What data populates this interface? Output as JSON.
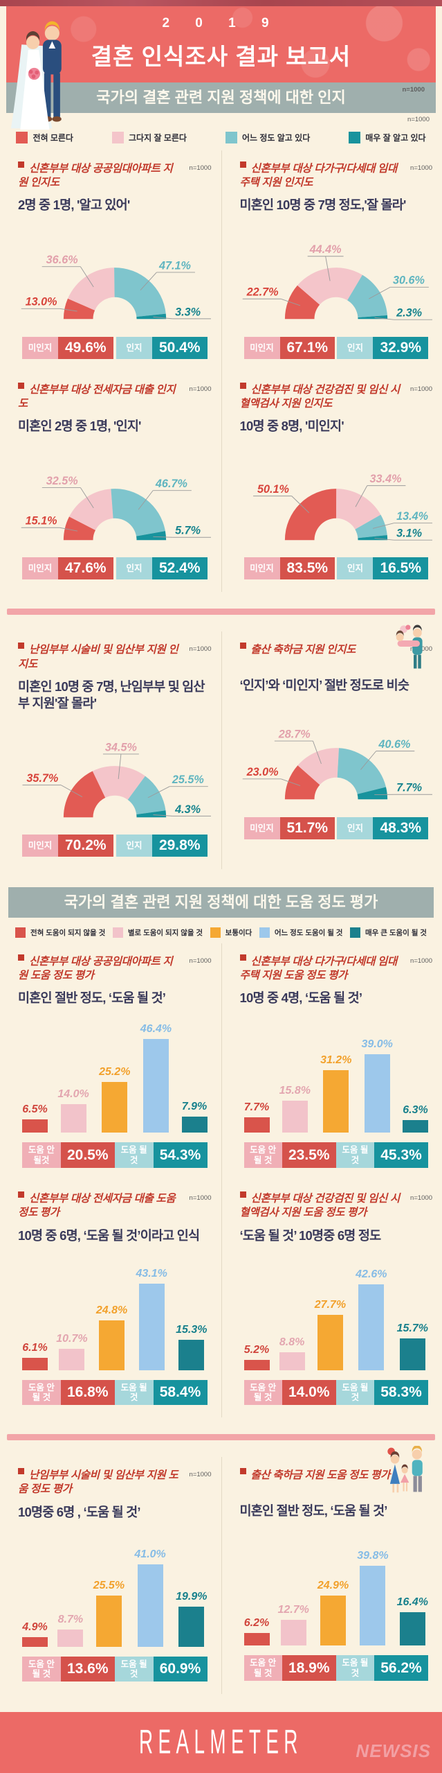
{
  "header": {
    "year": "2 0 1 9",
    "title": "결혼 인식조사 결과 보고서"
  },
  "sections": [
    {
      "banner": "국가의 결혼 관련 지원 정책에 대한 인지",
      "sample": "n=1000",
      "legend": [
        "전혀 모른다",
        "그다지 잘 모른다",
        "어느 정도 알고 있다",
        "매우 잘 알고 있다"
      ]
    },
    {
      "banner": "국가의 결혼 관련 지원 정책에 대한 도움 정도 평가",
      "legend": [
        "전혀 도움이 되지 않을 것",
        "별로 도움이 되지 않을 것",
        "보통이다",
        "어느 정도 도움이 될 것",
        "매우 큰 도움이 될 것"
      ]
    }
  ],
  "palettes": {
    "awareness_colors": [
      "#E25B54",
      "#F4C5CA",
      "#7FC5CD",
      "#18939D"
    ],
    "awareness_label_colors": [
      "#D8443B",
      "#E2A0AB",
      "#5FB5C0",
      "#17848E"
    ],
    "help_colors": [
      "#D9544B",
      "#F2C3CA",
      "#F5A833",
      "#9DC8EB",
      "#1B808D"
    ],
    "help_label_colors": [
      "#D0453C",
      "#E3A6B0",
      "#F2A12C",
      "#86BCE6",
      "#17808C"
    ]
  },
  "chart_data": [
    {
      "type": "donut",
      "title": "신혼부부 대상 공공임대아파트 지원 인지도",
      "sample": "n=1000",
      "subtitle": "2명 중 1명, '알고 있어'",
      "categories": [
        "전혀 모른다",
        "그다지 잘 모른다",
        "어느 정도 알고 있다",
        "매우 잘 알고 있다"
      ],
      "values": [
        13.0,
        36.6,
        47.1,
        3.3
      ],
      "summary": [
        {
          "label": "미인지",
          "value": "49.6%",
          "tone": "negative"
        },
        {
          "label": "인지",
          "value": "50.4%",
          "tone": "positive"
        }
      ]
    },
    {
      "type": "donut",
      "title": "신혼부부 대상 다가구/다세대 임대주택 지원 인지도",
      "sample": "n=1000",
      "subtitle": "미혼인 10명 중 7명 정도,'잘 몰라'",
      "categories": [
        "전혀 모른다",
        "그다지 잘 모른다",
        "어느 정도 알고 있다",
        "매우 잘 알고 있다"
      ],
      "values": [
        22.7,
        44.4,
        30.6,
        2.3
      ],
      "summary": [
        {
          "label": "미인지",
          "value": "67.1%",
          "tone": "negative"
        },
        {
          "label": "인지",
          "value": "32.9%",
          "tone": "positive"
        }
      ]
    },
    {
      "type": "donut",
      "title": "신혼부부 대상 전세자금 대출 인지도",
      "sample": "n=1000",
      "subtitle": "미혼인 2명 중 1명, '인지'",
      "categories": [
        "전혀 모른다",
        "그다지 잘 모른다",
        "어느 정도 알고 있다",
        "매우 잘 알고 있다"
      ],
      "values": [
        15.1,
        32.5,
        46.7,
        5.7
      ],
      "summary": [
        {
          "label": "미인지",
          "value": "47.6%",
          "tone": "negative"
        },
        {
          "label": "인지",
          "value": "52.4%",
          "tone": "positive"
        }
      ]
    },
    {
      "type": "donut",
      "title": "신혼부부 대상 건강검진 및 임신 시 혈액검사 지원 인지도",
      "sample": "n=1000",
      "subtitle": "10명 중 8명, '미인지'",
      "categories": [
        "전혀 모른다",
        "그다지 잘 모른다",
        "어느 정도 알고 있다",
        "매우 잘 알고 있다"
      ],
      "values": [
        50.1,
        33.4,
        13.4,
        3.1
      ],
      "summary": [
        {
          "label": "미인지",
          "value": "83.5%",
          "tone": "negative"
        },
        {
          "label": "인지",
          "value": "16.5%",
          "tone": "positive"
        }
      ]
    },
    {
      "type": "donut",
      "title": "난임부부 시술비 및 임산부 지원 인지도",
      "sample": "n=1000",
      "subtitle": "미혼인 10명 중 7명, 난임부부 및 임산부 지원'잘 몰라'",
      "categories": [
        "전혀 모른다",
        "그다지 잘 모른다",
        "어느 정도 알고 있다",
        "매우 잘 알고 있다"
      ],
      "values": [
        35.7,
        34.5,
        25.5,
        4.3
      ],
      "summary": [
        {
          "label": "미인지",
          "value": "70.2%",
          "tone": "negative"
        },
        {
          "label": "인지",
          "value": "29.8%",
          "tone": "positive"
        }
      ]
    },
    {
      "type": "donut",
      "title": "출산 축하금 지원 인지도",
      "sample": "n=1000",
      "subtitle": "‘인지’와 ‘미인지’ 절반 정도로 비슷",
      "categories": [
        "전혀 모른다",
        "그다지 잘 모른다",
        "어느 정도 알고 있다",
        "매우 잘 알고 있다"
      ],
      "values": [
        23.0,
        28.7,
        40.6,
        7.7
      ],
      "summary": [
        {
          "label": "미인지",
          "value": "51.7%",
          "tone": "negative"
        },
        {
          "label": "인지",
          "value": "48.3%",
          "tone": "positive"
        }
      ]
    },
    {
      "type": "bar",
      "title": "신혼부부 대상 공공임대아파트 지원 도움 정도 평가",
      "sample": "n=1000",
      "subtitle": "미혼인 절반 정도, ‘도움 될 것’",
      "categories": [
        "전혀 도움이 되지 않을 것",
        "별로 도움이 되지 않을 것",
        "보통이다",
        "어느 정도 도움이 될 것",
        "매우 큰 도움이 될 것"
      ],
      "values": [
        6.5,
        14.0,
        25.2,
        46.4,
        7.9
      ],
      "summary": [
        {
          "label": "도움 안될것",
          "value": "20.5%",
          "tone": "negative"
        },
        {
          "label": "도움 될 것",
          "value": "54.3%",
          "tone": "positive"
        }
      ]
    },
    {
      "type": "bar",
      "title": "신혼부부 대상 다가구/다세대 임대주택 지원 도움 정도 평가",
      "sample": "n=1000",
      "subtitle": "10명 중 4명, ‘도움 될 것’",
      "categories": [
        "전혀 도움이 되지 않을 것",
        "별로 도움이 되지 않을 것",
        "보통이다",
        "어느 정도 도움이 될 것",
        "매우 큰 도움이 될 것"
      ],
      "values": [
        7.7,
        15.8,
        31.2,
        39.0,
        6.3
      ],
      "summary": [
        {
          "label": "도움 안될 것",
          "value": "23.5%",
          "tone": "negative"
        },
        {
          "label": "도움 될것",
          "value": "45.3%",
          "tone": "positive"
        }
      ]
    },
    {
      "type": "bar",
      "title": "신혼부부 대상 전세자금 대출 도움 정도 평가",
      "sample": "n=1000",
      "subtitle": "10명 중 6명, ‘도움 될 것’이라고 인식",
      "categories": [
        "전혀 도움이 되지 않을 것",
        "별로 도움이 되지 않을 것",
        "보통이다",
        "어느 정도 도움이 될 것",
        "매우 큰 도움이 될 것"
      ],
      "values": [
        6.1,
        10.7,
        24.8,
        43.1,
        15.3
      ],
      "summary": [
        {
          "label": "도움 안될 것",
          "value": "16.8%",
          "tone": "negative"
        },
        {
          "label": "도움 될 것",
          "value": "58.4%",
          "tone": "positive"
        }
      ]
    },
    {
      "type": "bar",
      "title": "신혼부부 대상 건강검진 및 임신 시 혈액검사 지원 도움 정도 평가",
      "sample": "n=1000",
      "subtitle": "‘도움 될 것’ 10명중 6명 정도",
      "categories": [
        "전혀 도움이 되지 않을 것",
        "별로 도움이 되지 않을 것",
        "보통이다",
        "어느 정도 도움이 될 것",
        "매우 큰 도움이 될 것"
      ],
      "values": [
        5.2,
        8.8,
        27.7,
        42.6,
        15.7
      ],
      "summary": [
        {
          "label": "도움 안될 것",
          "value": "14.0%",
          "tone": "negative"
        },
        {
          "label": "도움 될 것",
          "value": "58.3%",
          "tone": "positive"
        }
      ]
    },
    {
      "type": "bar",
      "title": "난임부부 시술비 및 임산부 지원 도움 정도 평가",
      "sample": "n=1000",
      "subtitle": "10명중 6명 , ‘도움 될 것’",
      "categories": [
        "전혀 도움이 되지 않을 것",
        "별로 도움이 되지 않을 것",
        "보통이다",
        "어느 정도 도움이 될 것",
        "매우 큰 도움이 될 것"
      ],
      "values": [
        4.9,
        8.7,
        25.5,
        41.0,
        19.9
      ],
      "summary": [
        {
          "label": "도움 안될 것",
          "value": "13.6%",
          "tone": "negative"
        },
        {
          "label": "도움 될것",
          "value": "60.9%",
          "tone": "positive"
        }
      ]
    },
    {
      "type": "bar",
      "title": "출산 축하금 지원 도움 정도 평가",
      "sample": "",
      "subtitle": "미혼인 절반 정도, ‘도움 될 것’",
      "categories": [
        "전혀 도움이 되지 않을 것",
        "별로 도움이 되지 않을 것",
        "보통이다",
        "어느 정도 도움이 될 것",
        "매우 큰 도움이 될 것"
      ],
      "values": [
        6.2,
        12.7,
        24.9,
        39.8,
        16.4
      ],
      "summary": [
        {
          "label": "도움 안될 것",
          "value": "18.9%",
          "tone": "negative"
        },
        {
          "label": "도움 될것",
          "value": "56.2%",
          "tone": "positive"
        }
      ]
    }
  ],
  "footer": {
    "brand": "REALMETER",
    "agency": "NEWSIS"
  }
}
